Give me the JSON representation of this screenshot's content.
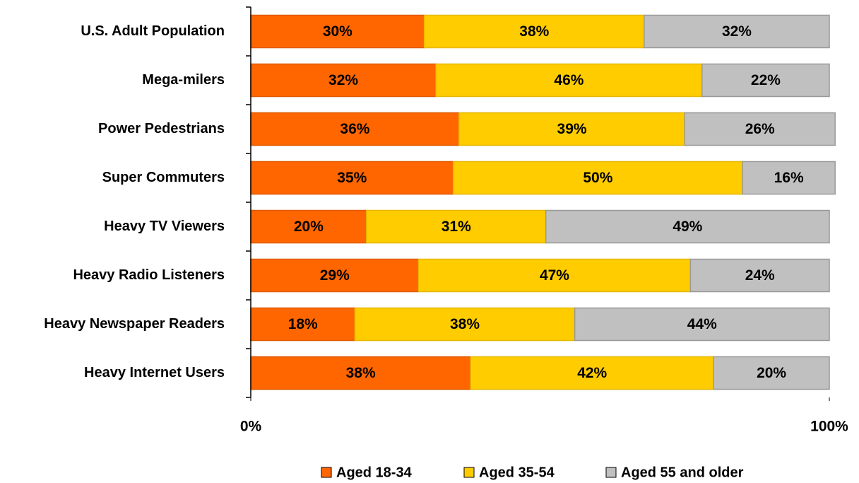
{
  "chart_data": {
    "type": "stacked-bar-horizontal",
    "categories": [
      "U.S. Adult Population",
      "Mega-milers",
      "Power Pedestrians",
      "Super Commuters",
      "Heavy TV Viewers",
      "Heavy Radio Listeners",
      "Heavy Newspaper Readers",
      "Heavy Internet Users"
    ],
    "series": [
      {
        "name": "Aged 18-34",
        "color": "#FF6600",
        "values": [
          30,
          32,
          36,
          35,
          20,
          29,
          18,
          38
        ],
        "value_labels": [
          "30%",
          "32%",
          "36%",
          "35%",
          "20%",
          "29%",
          "18%",
          "38%"
        ]
      },
      {
        "name": "Aged 35-54",
        "color": "#FFCC00",
        "values": [
          38,
          46,
          39,
          50,
          31,
          47,
          38,
          42
        ],
        "value_labels": [
          "38%",
          "46%",
          "39%",
          "50%",
          "31%",
          "47%",
          "38%",
          "42%"
        ]
      },
      {
        "name": "Aged 55 and older",
        "color": "#C0C0C0",
        "values": [
          32,
          22,
          26,
          16,
          49,
          24,
          44,
          20
        ],
        "value_labels": [
          "32%",
          "22%",
          "26%",
          "16%",
          "49%",
          "24%",
          "44%",
          "20%"
        ]
      }
    ],
    "xlim": [
      0,
      100
    ],
    "xticks": [
      {
        "value": 0,
        "label": "0%"
      },
      {
        "value": 100,
        "label": "100%"
      }
    ],
    "legend": "bottom"
  }
}
